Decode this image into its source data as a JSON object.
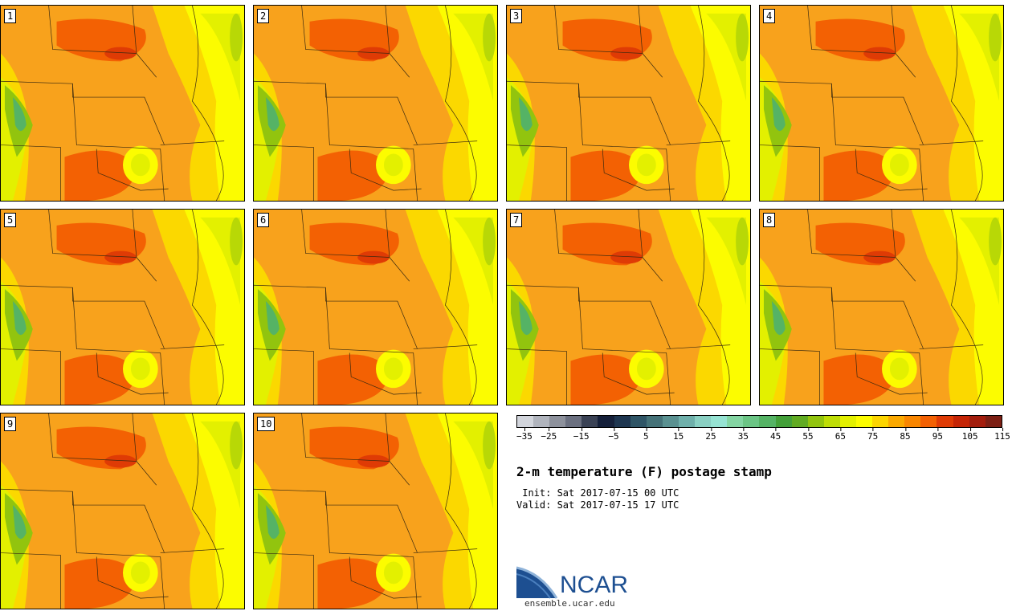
{
  "panels": [
    {
      "label": "1"
    },
    {
      "label": "2"
    },
    {
      "label": "3"
    },
    {
      "label": "4"
    },
    {
      "label": "5"
    },
    {
      "label": "6"
    },
    {
      "label": "7"
    },
    {
      "label": "8"
    },
    {
      "label": "9"
    },
    {
      "label": "10"
    }
  ],
  "colorbar": {
    "colors": [
      "#d2d5dc",
      "#b0b4bd",
      "#8d919c",
      "#6b7080",
      "#3a4255",
      "#15203a",
      "#1e3650",
      "#2f5566",
      "#457278",
      "#5a9191",
      "#6fb0ab",
      "#8ad0c3",
      "#96e3d3",
      "#84d5a3",
      "#6bc585",
      "#55b365",
      "#43a039",
      "#61ab22",
      "#92c40e",
      "#bedd06",
      "#e3f000",
      "#fcfc00",
      "#fcd500",
      "#fba900",
      "#f98600",
      "#f36103",
      "#df3b05",
      "#c52506",
      "#a31d0d",
      "#7c1f14"
    ],
    "ticks": [
      "−35",
      "−25",
      "−15",
      "−5",
      "5",
      "15",
      "25",
      "35",
      "45",
      "55",
      "65",
      "75",
      "85",
      "95",
      "105",
      "115"
    ]
  },
  "title": "2-m temperature (F) postage stamp",
  "init": " Init: Sat 2017-07-15 00 UTC",
  "valid": "Valid: Sat 2017-07-15 17 UTC",
  "logo": {
    "word": "NCAR",
    "url": "ensemble.ucar.edu"
  }
}
